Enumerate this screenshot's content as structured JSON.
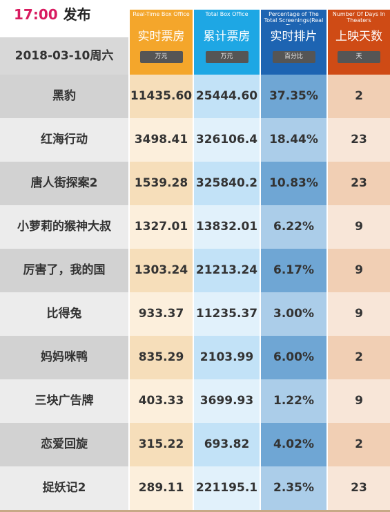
{
  "header": {
    "time": "17:00",
    "publish": "发布",
    "date": "2018-03-10周六",
    "columns": [
      {
        "en": "Real-Time Box Office",
        "cn": "实时票房",
        "unit": "万元"
      },
      {
        "en": "Total Box Office",
        "cn": "累计票房",
        "unit": "万元"
      },
      {
        "en": "Percentage of The Total Screenings(Real Time)",
        "cn": "实时排片",
        "unit": "百分比"
      },
      {
        "en": "Number Of Days In Theaters",
        "cn": "上映天数",
        "unit": "天"
      }
    ]
  },
  "rows": [
    {
      "name": "黑豹",
      "realtime": "11435.60",
      "total": "25444.60",
      "percent": "37.35%",
      "days": "2"
    },
    {
      "name": "红海行动",
      "realtime": "3498.41",
      "total": "326106.4",
      "percent": "18.44%",
      "days": "23"
    },
    {
      "name": "唐人街探案2",
      "realtime": "1539.28",
      "total": "325840.2",
      "percent": "10.83%",
      "days": "23"
    },
    {
      "name": "小萝莉的猴神大叔",
      "realtime": "1327.01",
      "total": "13832.01",
      "percent": "6.22%",
      "days": "9"
    },
    {
      "name": "厉害了，我的国",
      "realtime": "1303.24",
      "total": "21213.24",
      "percent": "6.17%",
      "days": "9"
    },
    {
      "name": "比得兔",
      "realtime": "933.37",
      "total": "11235.37",
      "percent": "3.00%",
      "days": "9"
    },
    {
      "name": "妈妈咪鸭",
      "realtime": "835.29",
      "total": "2103.99",
      "percent": "6.00%",
      "days": "2"
    },
    {
      "name": "三块广告牌",
      "realtime": "403.33",
      "total": "3699.93",
      "percent": "1.22%",
      "days": "9"
    },
    {
      "name": "恋爱回旋",
      "realtime": "315.22",
      "total": "693.82",
      "percent": "4.02%",
      "days": "2"
    },
    {
      "name": "捉妖记2",
      "realtime": "289.11",
      "total": "221195.1",
      "percent": "2.35%",
      "days": "23"
    }
  ]
}
